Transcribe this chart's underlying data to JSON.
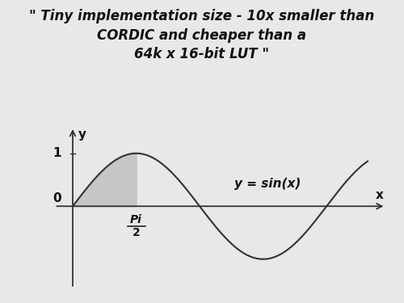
{
  "title_line1": "\" Tiny implementation size - 10x smaller than",
  "title_line2": "CORDIC and cheaper than a",
  "title_line3": "64k x 16-bit LUT \"",
  "title_fontsize": 12,
  "title_color": "#111111",
  "background_color": "#e8e8e8",
  "sine_color": "#333333",
  "fill_color": "#c0c0c0",
  "fill_alpha": 0.85,
  "label_y": "y",
  "label_x": "x",
  "label_0": "0",
  "label_1": "1",
  "label_pi2_top": "Pi",
  "label_pi2_bot": "2",
  "label_eq": "y = sin(x)",
  "xlim": [
    -0.5,
    7.8
  ],
  "ylim": [
    -1.6,
    1.55
  ],
  "sine_xstart": 0.0,
  "sine_xend": 7.3
}
